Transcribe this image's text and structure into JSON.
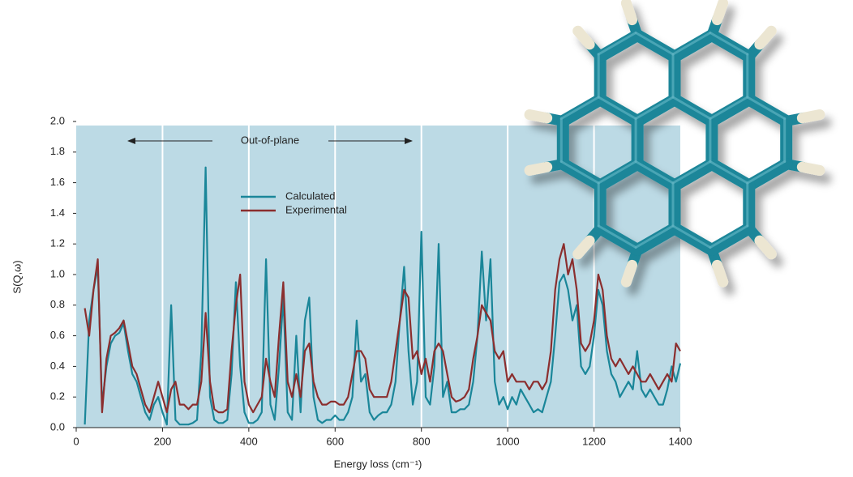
{
  "chart_data": {
    "type": "line",
    "ylabel": "S(Q,ω)",
    "xlabel": "Energy loss (cm⁻¹)",
    "annotation": "Out-of-plane",
    "xlim": [
      0,
      1400
    ],
    "xticks": [
      0,
      200,
      400,
      600,
      800,
      1000,
      1200,
      1400
    ],
    "ylim": [
      0,
      2
    ],
    "yticks": [
      {
        "value": 0,
        "label": "0.0"
      },
      0.2,
      0.4,
      0.6,
      0.8,
      {
        "value": 1,
        "label": "1.0"
      },
      1.2,
      1.4,
      1.6,
      1.8,
      {
        "value": 2,
        "label": "2.0"
      }
    ],
    "grid": true,
    "legend": "upper center",
    "x": [
      20,
      30,
      40,
      50,
      60,
      70,
      80,
      90,
      100,
      110,
      120,
      130,
      140,
      150,
      160,
      170,
      180,
      190,
      200,
      210,
      220,
      230,
      240,
      250,
      260,
      270,
      280,
      290,
      300,
      310,
      320,
      330,
      340,
      350,
      360,
      370,
      380,
      390,
      400,
      410,
      420,
      430,
      440,
      450,
      460,
      470,
      480,
      490,
      500,
      510,
      520,
      530,
      540,
      550,
      560,
      570,
      580,
      590,
      600,
      610,
      620,
      630,
      640,
      650,
      660,
      670,
      680,
      690,
      700,
      710,
      720,
      730,
      740,
      750,
      760,
      770,
      780,
      790,
      800,
      810,
      820,
      830,
      840,
      850,
      860,
      870,
      880,
      890,
      900,
      910,
      920,
      930,
      940,
      950,
      960,
      970,
      980,
      990,
      1000,
      1010,
      1020,
      1030,
      1040,
      1050,
      1060,
      1070,
      1080,
      1090,
      1100,
      1110,
      1120,
      1130,
      1140,
      1150,
      1160,
      1170,
      1180,
      1190,
      1200,
      1210,
      1220,
      1230,
      1240,
      1250,
      1260,
      1270,
      1280,
      1290,
      1300,
      1310,
      1320,
      1330,
      1340,
      1350,
      1360,
      1370,
      1380,
      1390,
      1400
    ],
    "series": [
      {
        "name": "Calculated",
        "color": "#1a8699",
        "values": [
          0.02,
          0.7,
          0.9,
          1.05,
          0.15,
          0.4,
          0.55,
          0.6,
          0.62,
          0.68,
          0.5,
          0.35,
          0.3,
          0.2,
          0.1,
          0.05,
          0.15,
          0.2,
          0.1,
          0.02,
          0.8,
          0.05,
          0.02,
          0.02,
          0.02,
          0.03,
          0.05,
          0.5,
          1.7,
          0.2,
          0.05,
          0.03,
          0.03,
          0.05,
          0.35,
          0.95,
          0.4,
          0.1,
          0.03,
          0.03,
          0.05,
          0.1,
          1.1,
          0.15,
          0.05,
          0.4,
          0.85,
          0.1,
          0.05,
          0.6,
          0.1,
          0.7,
          0.85,
          0.2,
          0.05,
          0.03,
          0.05,
          0.05,
          0.08,
          0.05,
          0.05,
          0.1,
          0.2,
          0.7,
          0.3,
          0.35,
          0.1,
          0.05,
          0.08,
          0.1,
          0.1,
          0.15,
          0.3,
          0.7,
          1.05,
          0.5,
          0.15,
          0.3,
          1.28,
          0.2,
          0.15,
          0.4,
          1.2,
          0.2,
          0.3,
          0.1,
          0.1,
          0.12,
          0.12,
          0.15,
          0.3,
          0.6,
          1.15,
          0.7,
          1.1,
          0.3,
          0.15,
          0.2,
          0.12,
          0.2,
          0.15,
          0.25,
          0.2,
          0.15,
          0.1,
          0.12,
          0.1,
          0.2,
          0.3,
          0.6,
          0.95,
          1.0,
          0.9,
          0.7,
          0.8,
          0.4,
          0.35,
          0.4,
          0.6,
          0.9,
          0.8,
          0.5,
          0.35,
          0.3,
          0.2,
          0.25,
          0.3,
          0.25,
          0.5,
          0.25,
          0.2,
          0.25,
          0.2,
          0.15,
          0.15,
          0.25,
          0.4,
          0.3,
          0.42
        ]
      },
      {
        "name": "Experimental",
        "color": "#8b2e2e",
        "values": [
          0.78,
          0.6,
          0.9,
          1.1,
          0.1,
          0.45,
          0.6,
          0.62,
          0.65,
          0.7,
          0.55,
          0.4,
          0.35,
          0.25,
          0.15,
          0.1,
          0.2,
          0.3,
          0.2,
          0.1,
          0.25,
          0.3,
          0.15,
          0.15,
          0.12,
          0.15,
          0.15,
          0.3,
          0.75,
          0.3,
          0.12,
          0.1,
          0.1,
          0.12,
          0.5,
          0.8,
          1.0,
          0.3,
          0.15,
          0.1,
          0.15,
          0.2,
          0.45,
          0.3,
          0.2,
          0.6,
          0.95,
          0.3,
          0.2,
          0.35,
          0.2,
          0.5,
          0.55,
          0.3,
          0.2,
          0.15,
          0.15,
          0.17,
          0.17,
          0.15,
          0.15,
          0.2,
          0.35,
          0.5,
          0.5,
          0.45,
          0.25,
          0.2,
          0.2,
          0.2,
          0.2,
          0.3,
          0.5,
          0.7,
          0.9,
          0.85,
          0.45,
          0.5,
          0.35,
          0.45,
          0.3,
          0.5,
          0.55,
          0.5,
          0.35,
          0.2,
          0.17,
          0.18,
          0.2,
          0.25,
          0.45,
          0.6,
          0.8,
          0.75,
          0.7,
          0.5,
          0.45,
          0.5,
          0.3,
          0.35,
          0.3,
          0.3,
          0.3,
          0.25,
          0.3,
          0.3,
          0.25,
          0.3,
          0.5,
          0.9,
          1.1,
          1.2,
          1.0,
          1.1,
          0.9,
          0.55,
          0.5,
          0.55,
          0.7,
          1.0,
          0.9,
          0.6,
          0.45,
          0.4,
          0.45,
          0.4,
          0.35,
          0.4,
          0.35,
          0.3,
          0.3,
          0.35,
          0.3,
          0.25,
          0.3,
          0.35,
          0.3,
          0.55,
          0.5
        ]
      }
    ]
  }
}
